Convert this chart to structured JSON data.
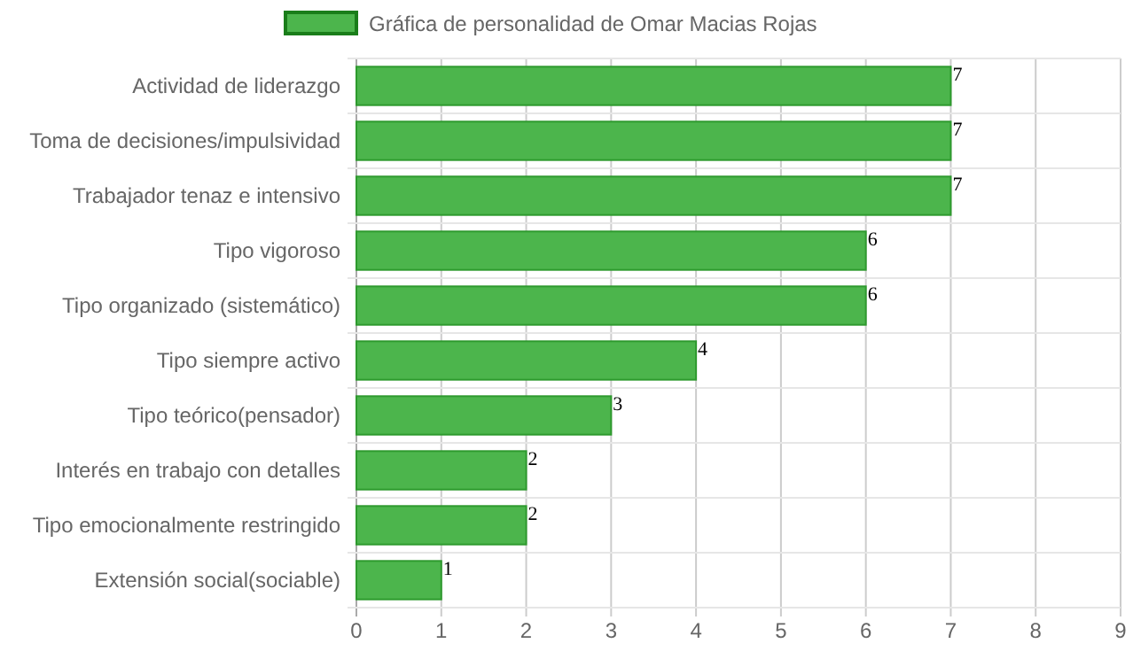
{
  "chart_data": {
    "type": "bar",
    "orientation": "horizontal",
    "categories": [
      "Actividad de liderazgo",
      "Toma de decisiones/impulsividad",
      "Trabajador tenaz e intensivo",
      "Tipo vigoroso",
      "Tipo organizado (sistemático)",
      "Tipo siempre activo",
      "Tipo teórico(pensador)",
      "Interés en trabajo con detalles",
      "Tipo emocionalmente restringido",
      "Extensión social(sociable)"
    ],
    "series": [
      {
        "name": "Gráfica de personalidad de Omar Macias Rojas",
        "color": "#4cb54c",
        "values": [
          7,
          7,
          7,
          6,
          6,
          4,
          3,
          2,
          2,
          1
        ]
      }
    ],
    "xlim": [
      0,
      9
    ],
    "xticks": [
      0,
      1,
      2,
      3,
      4,
      5,
      6,
      7,
      8,
      9
    ],
    "grid": true,
    "legend": "top",
    "data_labels": true
  }
}
